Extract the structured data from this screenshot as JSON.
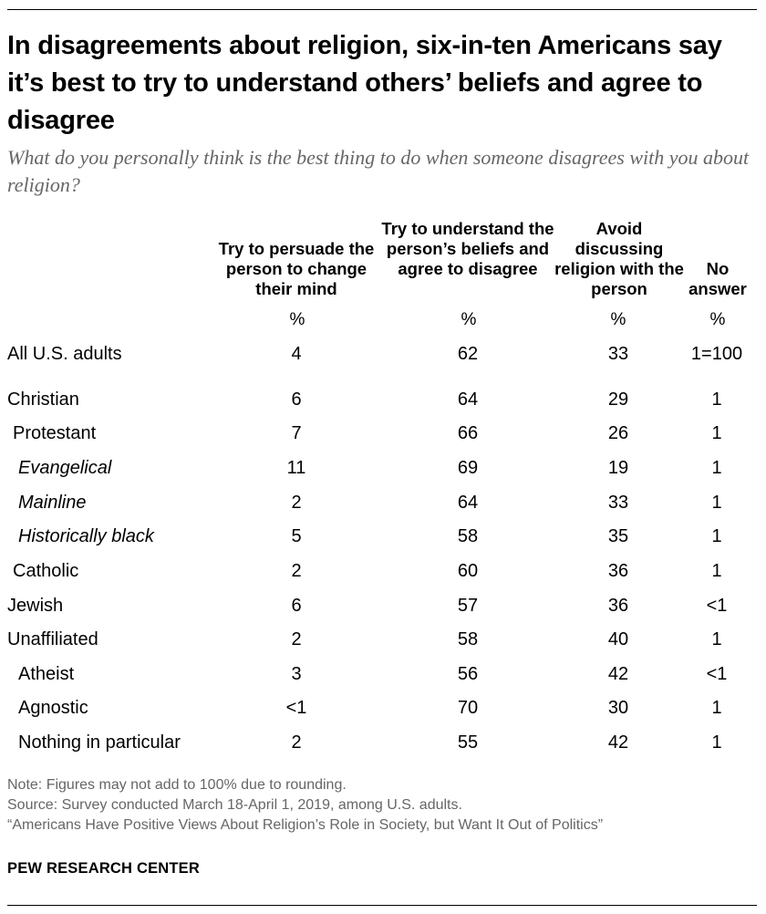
{
  "chart_data": {
    "type": "table",
    "title": "In disagreements about religion, six-in-ten Americans say it’s best to try to understand others’ beliefs and agree to disagree",
    "subtitle": "What do you personally think is the best thing to do when someone disagrees with you about religion?",
    "columns": [
      "Try to persuade the person to change their mind",
      "Try to understand the person’s beliefs and agree to disagree",
      "Avoid discussing religion with the person",
      "No answer"
    ],
    "unit": "%",
    "rows": [
      {
        "label": "All U.S. adults",
        "values": [
          "4",
          "62",
          "33",
          "1=100"
        ]
      },
      {
        "label": "Christian",
        "values": [
          "6",
          "64",
          "29",
          "1"
        ]
      },
      {
        "label": "Protestant",
        "values": [
          "7",
          "66",
          "26",
          "1"
        ]
      },
      {
        "label": "Evangelical",
        "values": [
          "11",
          "69",
          "19",
          "1"
        ]
      },
      {
        "label": "Mainline",
        "values": [
          "2",
          "64",
          "33",
          "1"
        ]
      },
      {
        "label": "Historically black",
        "values": [
          "5",
          "58",
          "35",
          "1"
        ]
      },
      {
        "label": "Catholic",
        "values": [
          "2",
          "60",
          "36",
          "1"
        ]
      },
      {
        "label": "Jewish",
        "values": [
          "6",
          "57",
          "36",
          "<1"
        ]
      },
      {
        "label": "Unaffiliated",
        "values": [
          "2",
          "58",
          "40",
          "1"
        ]
      },
      {
        "label": "Atheist",
        "values": [
          "3",
          "56",
          "42",
          "<1"
        ]
      },
      {
        "label": "Agnostic",
        "values": [
          "<1",
          "70",
          "30",
          "1"
        ]
      },
      {
        "label": "Nothing in particular",
        "values": [
          "2",
          "55",
          "42",
          "1"
        ]
      }
    ]
  },
  "notes": {
    "note": "Note: Figures may not add to 100% due to rounding.",
    "source": "Source: Survey conducted March 18-April 1, 2019, among U.S. adults.",
    "report": "“Americans Have Positive Views About Religion’s Role in Society, but Want It Out of Politics”"
  },
  "brand": "PEW RESEARCH CENTER",
  "colors": {
    "text": "#000000",
    "muted": "#666666",
    "background": "#ffffff"
  }
}
